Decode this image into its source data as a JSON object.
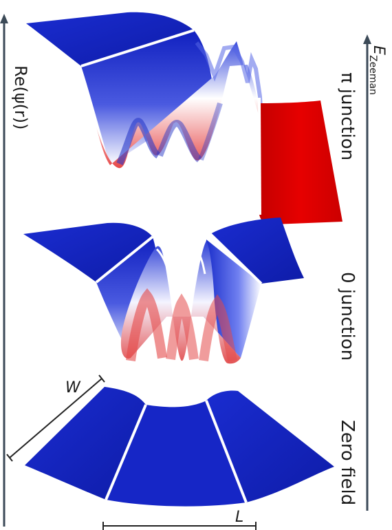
{
  "labels": {
    "y_axis": "Re(ψ(r))",
    "energy_axis_main": "E",
    "energy_axis_sub": "Zeeman",
    "panel_pi": "π junction",
    "panel_zero": "0 junction",
    "panel_field": "Zero field",
    "width_label": "W",
    "length_label": "L"
  },
  "colors": {
    "positive": "#e00000",
    "negative": "#1428c8",
    "axis": "#3c4a58",
    "scale_bar": "#222222"
  }
}
